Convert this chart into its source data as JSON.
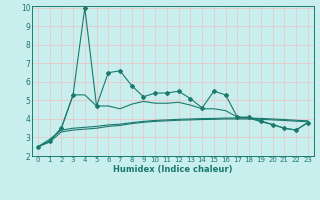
{
  "x": [
    0,
    1,
    2,
    3,
    4,
    5,
    6,
    7,
    8,
    9,
    10,
    11,
    12,
    13,
    14,
    15,
    16,
    17,
    18,
    19,
    20,
    21,
    22,
    23
  ],
  "line1": [
    2.5,
    2.8,
    3.5,
    5.3,
    10.0,
    4.7,
    6.5,
    6.6,
    5.8,
    5.2,
    5.4,
    5.4,
    5.5,
    5.1,
    4.6,
    5.5,
    5.3,
    4.1,
    4.1,
    3.9,
    3.7,
    3.5,
    3.4,
    3.8
  ],
  "line2": [
    2.5,
    2.8,
    3.5,
    5.3,
    5.3,
    4.7,
    4.7,
    4.55,
    4.8,
    4.95,
    4.85,
    4.85,
    4.9,
    4.75,
    4.55,
    4.55,
    4.45,
    4.1,
    4.05,
    3.85,
    3.7,
    3.5,
    3.4,
    3.8
  ],
  "line3": [
    2.5,
    2.75,
    3.3,
    3.4,
    3.45,
    3.5,
    3.6,
    3.65,
    3.75,
    3.82,
    3.87,
    3.9,
    3.93,
    3.95,
    3.97,
    3.98,
    4.0,
    4.0,
    4.0,
    3.98,
    3.95,
    3.92,
    3.88,
    3.85
  ],
  "line4": [
    2.5,
    2.9,
    3.4,
    3.5,
    3.55,
    3.6,
    3.68,
    3.72,
    3.8,
    3.87,
    3.92,
    3.95,
    3.98,
    4.0,
    4.02,
    4.03,
    4.05,
    4.05,
    4.05,
    4.03,
    4.0,
    3.97,
    3.93,
    3.9
  ],
  "color": "#1a7a6e",
  "bg_color": "#c8eeee",
  "grid_color": "#e8c8c8",
  "ylim": [
    2,
    10
  ],
  "xlim_min": -0.5,
  "xlim_max": 23.5,
  "xlabel": "Humidex (Indice chaleur)",
  "xticks": [
    0,
    1,
    2,
    3,
    4,
    5,
    6,
    7,
    8,
    9,
    10,
    11,
    12,
    13,
    14,
    15,
    16,
    17,
    18,
    19,
    20,
    21,
    22,
    23
  ],
  "yticks": [
    2,
    3,
    4,
    5,
    6,
    7,
    8,
    9,
    10
  ],
  "tick_fontsize": 5.0,
  "xlabel_fontsize": 6.0
}
